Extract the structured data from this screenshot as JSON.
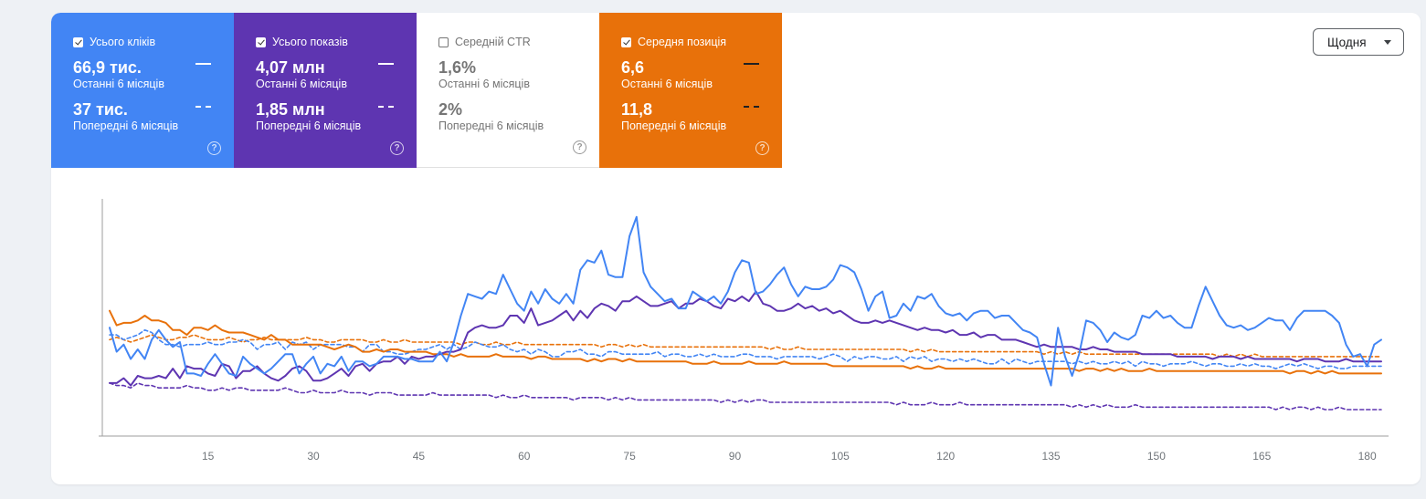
{
  "tiles": [
    {
      "key": "clicks",
      "label": "Усього кліків",
      "checked": true,
      "current_value": "66,9 тис.",
      "current_label": "Останні 6 місяців",
      "previous_value": "37 тис.",
      "previous_label": "Попередні 6 місяців",
      "color": "#4285f4"
    },
    {
      "key": "impressions",
      "label": "Усього показів",
      "checked": true,
      "current_value": "4,07 млн",
      "current_label": "Останні 6 місяців",
      "previous_value": "1,85 млн",
      "previous_label": "Попередні 6 місяців",
      "color": "#5e35b1"
    },
    {
      "key": "ctr",
      "label": "Середній CTR",
      "checked": false,
      "current_value": "1,6%",
      "current_label": "Останні 6 місяців",
      "previous_value": "2%",
      "previous_label": "Попередні 6 місяців",
      "color": "#ffffff"
    },
    {
      "key": "position",
      "label": "Середня позиція",
      "checked": true,
      "current_value": "6,6",
      "current_label": "Останні 6 місяців",
      "previous_value": "11,8",
      "previous_label": "Попередні 6 місяців",
      "color": "#e8710a"
    }
  ],
  "help_icon": "help-circle-icon",
  "granularity": {
    "label": "Щодня",
    "icon": "chevron-down-icon"
  },
  "chart_data": {
    "type": "line",
    "xlabel": "",
    "ylabel": "",
    "xlim": [
      1,
      182
    ],
    "ylim": [
      0,
      100
    ],
    "x_ticks": [
      15,
      30,
      45,
      60,
      75,
      90,
      105,
      120,
      135,
      150,
      165,
      180
    ],
    "y_axis_visible": false,
    "grid": false,
    "series": [
      {
        "metric": "clicks",
        "period": "current",
        "color": "#4285f4",
        "style": "solid",
        "width": 2,
        "y": [
          45,
          35,
          38,
          32,
          36,
          32,
          40,
          44,
          40,
          37,
          39,
          26,
          26,
          25,
          30,
          34,
          30,
          26,
          25,
          33,
          30,
          28,
          26,
          28,
          31,
          34,
          34,
          26,
          30,
          33,
          26,
          30,
          29,
          33,
          27,
          31,
          31,
          29,
          30,
          33,
          33,
          33,
          32,
          32,
          31,
          31,
          31,
          35,
          31,
          39,
          50,
          59,
          58,
          57,
          60,
          59,
          67,
          61,
          55,
          52,
          60,
          55,
          61,
          57,
          55,
          59,
          55,
          69,
          73,
          72,
          77,
          67,
          66,
          66,
          83,
          91,
          68,
          62,
          59,
          56,
          57,
          53,
          53,
          60,
          58,
          56,
          58,
          55,
          60,
          68,
          73,
          72,
          59,
          60,
          63,
          67,
          70,
          63,
          58,
          62,
          61,
          61,
          62,
          65,
          71,
          70,
          68,
          61,
          52,
          58,
          60,
          49,
          50,
          55,
          52,
          58,
          57,
          59,
          54,
          51,
          50,
          51,
          48,
          51,
          52,
          52,
          49,
          50,
          50,
          47,
          44,
          43,
          41,
          30,
          21,
          45,
          33,
          25,
          34,
          48,
          47,
          44,
          39,
          43,
          41,
          40,
          42,
          50,
          49,
          52,
          49,
          50,
          47,
          45,
          45,
          54,
          62,
          56,
          50,
          46,
          45,
          46,
          44,
          45,
          47,
          49,
          48,
          48,
          44,
          49,
          52,
          52,
          52,
          52,
          50,
          47,
          38,
          33,
          34,
          29,
          38,
          40
        ]
      },
      {
        "metric": "clicks",
        "period": "previous",
        "color": "#4285f4",
        "style": "dashed",
        "width": 1.6,
        "y": [
          42,
          42,
          40,
          41,
          42,
          44,
          43,
          40,
          38,
          38,
          37,
          38,
          38,
          38,
          39,
          38,
          38,
          39,
          39,
          40,
          39,
          36,
          38,
          38,
          39,
          36,
          39,
          38,
          39,
          36,
          38,
          38,
          38,
          38,
          37,
          37,
          35,
          38,
          38,
          35,
          35,
          34,
          34,
          35,
          36,
          36,
          37,
          38,
          36,
          38,
          36,
          37,
          39,
          38,
          37,
          37,
          38,
          36,
          35,
          36,
          34,
          36,
          35,
          33,
          33,
          35,
          35,
          36,
          34,
          34,
          33,
          35,
          35,
          34,
          34,
          34,
          34,
          34,
          35,
          33,
          34,
          34,
          33,
          33,
          34,
          33,
          34,
          33,
          33,
          33,
          34,
          34,
          33,
          33,
          33,
          32,
          33,
          33,
          33,
          33,
          33,
          32,
          33,
          34,
          33,
          31,
          33,
          32,
          33,
          33,
          32,
          32,
          33,
          31,
          33,
          32,
          33,
          31,
          32,
          32,
          31,
          32,
          31,
          32,
          31,
          30,
          30,
          32,
          30,
          32,
          31,
          30,
          31,
          31,
          31,
          31,
          31,
          30,
          31,
          30,
          31,
          30,
          30,
          31,
          30,
          31,
          29,
          31,
          30,
          30,
          29,
          30,
          30,
          30,
          31,
          30,
          29,
          30,
          30,
          29,
          29,
          30,
          29,
          30,
          29,
          29,
          28,
          29,
          30,
          29,
          30,
          29,
          28,
          29,
          29,
          28,
          28,
          29,
          29,
          29,
          29,
          29
        ]
      },
      {
        "metric": "impressions",
        "period": "current",
        "color": "#5e35b1",
        "style": "solid",
        "width": 2,
        "y": [
          22,
          22,
          24,
          21,
          25,
          24,
          24,
          25,
          24,
          28,
          24,
          29,
          28,
          28,
          26,
          25,
          30,
          29,
          24,
          27,
          27,
          29,
          26,
          24,
          23,
          25,
          28,
          29,
          27,
          23,
          23,
          24,
          26,
          28,
          25,
          29,
          30,
          27,
          30,
          31,
          31,
          33,
          30,
          33,
          32,
          33,
          33,
          34,
          35,
          35,
          36,
          43,
          45,
          46,
          45,
          45,
          46,
          50,
          50,
          47,
          53,
          46,
          47,
          48,
          50,
          52,
          48,
          52,
          49,
          53,
          55,
          54,
          52,
          56,
          56,
          58,
          56,
          54,
          54,
          55,
          56,
          53,
          55,
          55,
          57,
          56,
          54,
          53,
          57,
          56,
          58,
          56,
          60,
          55,
          54,
          52,
          52,
          53,
          55,
          53,
          54,
          52,
          53,
          51,
          52,
          50,
          48,
          47,
          47,
          48,
          47,
          48,
          47,
          46,
          45,
          44,
          45,
          44,
          44,
          43,
          44,
          42,
          42,
          43,
          41,
          42,
          42,
          40,
          40,
          40,
          39,
          38,
          37,
          38,
          37,
          37,
          37,
          37,
          36,
          36,
          37,
          36,
          36,
          35,
          35,
          35,
          35,
          34,
          34,
          34,
          34,
          34,
          33,
          33,
          33,
          33,
          33,
          32,
          33,
          33,
          33,
          32,
          33,
          32,
          32,
          32,
          32,
          32,
          32,
          31,
          32,
          32,
          32,
          31,
          31,
          31,
          32,
          31,
          31,
          31,
          31,
          31
        ]
      },
      {
        "metric": "impressions",
        "period": "previous",
        "color": "#5e35b1",
        "style": "dashed",
        "width": 1.6,
        "y": [
          22,
          21,
          21,
          20,
          22,
          21,
          21,
          20,
          20,
          20,
          20,
          21,
          20,
          20,
          19,
          19,
          20,
          19,
          20,
          20,
          19,
          19,
          19,
          19,
          19,
          20,
          19,
          18,
          18,
          19,
          18,
          18,
          18,
          19,
          18,
          18,
          18,
          17,
          18,
          18,
          18,
          17,
          17,
          17,
          17,
          17,
          18,
          17,
          17,
          17,
          17,
          17,
          17,
          17,
          17,
          16,
          17,
          16,
          16,
          17,
          16,
          16,
          16,
          16,
          16,
          16,
          15,
          16,
          16,
          16,
          16,
          15,
          16,
          15,
          16,
          15,
          15,
          15,
          15,
          15,
          15,
          15,
          15,
          15,
          15,
          15,
          15,
          14,
          15,
          14,
          15,
          14,
          15,
          15,
          14,
          14,
          14,
          14,
          14,
          14,
          14,
          14,
          14,
          14,
          14,
          14,
          14,
          14,
          14,
          14,
          14,
          14,
          13,
          14,
          13,
          13,
          13,
          14,
          13,
          13,
          13,
          14,
          13,
          13,
          13,
          13,
          13,
          13,
          13,
          13,
          13,
          13,
          13,
          13,
          13,
          13,
          13,
          12,
          13,
          12,
          13,
          12,
          13,
          12,
          12,
          12,
          13,
          12,
          12,
          12,
          12,
          12,
          12,
          12,
          12,
          12,
          12,
          12,
          12,
          12,
          12,
          12,
          12,
          12,
          12,
          12,
          11,
          12,
          11,
          12,
          12,
          11,
          12,
          11,
          11,
          12,
          11,
          11,
          11,
          11,
          11,
          11
        ]
      },
      {
        "metric": "position",
        "period": "current",
        "color": "#e8710a",
        "style": "solid",
        "width": 2,
        "y": [
          52,
          46,
          47,
          47,
          48,
          50,
          48,
          48,
          47,
          44,
          44,
          42,
          45,
          45,
          44,
          46,
          44,
          43,
          43,
          43,
          42,
          41,
          40,
          42,
          40,
          40,
          38,
          38,
          38,
          38,
          38,
          37,
          36,
          37,
          38,
          37,
          35,
          35,
          36,
          35,
          36,
          36,
          35,
          35,
          35,
          35,
          34,
          34,
          34,
          33,
          34,
          33,
          33,
          33,
          33,
          34,
          33,
          33,
          33,
          33,
          32,
          33,
          33,
          32,
          32,
          32,
          32,
          32,
          31,
          32,
          31,
          32,
          32,
          31,
          32,
          31,
          31,
          31,
          31,
          31,
          31,
          31,
          31,
          30,
          30,
          30,
          31,
          30,
          30,
          30,
          30,
          31,
          30,
          30,
          30,
          30,
          31,
          30,
          30,
          30,
          30,
          30,
          30,
          29,
          29,
          29,
          29,
          29,
          29,
          29,
          29,
          29,
          29,
          29,
          28,
          29,
          28,
          28,
          29,
          28,
          28,
          28,
          28,
          28,
          28,
          28,
          28,
          28,
          28,
          28,
          28,
          28,
          28,
          28,
          28,
          28,
          28,
          28,
          27,
          28,
          28,
          27,
          28,
          27,
          28,
          27,
          27,
          27,
          28,
          27,
          27,
          27,
          27,
          27,
          27,
          27,
          27,
          27,
          27,
          27,
          27,
          27,
          27,
          27,
          27,
          27,
          27,
          27,
          26,
          27,
          27,
          26,
          27,
          26,
          27,
          26,
          26,
          26,
          26,
          26,
          26,
          26
        ]
      },
      {
        "metric": "position",
        "period": "previous",
        "color": "#e8710a",
        "style": "dashed",
        "width": 1.6,
        "y": [
          40,
          41,
          40,
          39,
          40,
          41,
          42,
          41,
          40,
          40,
          41,
          41,
          42,
          41,
          40,
          40,
          40,
          41,
          40,
          39,
          40,
          40,
          41,
          40,
          40,
          40,
          40,
          40,
          41,
          40,
          40,
          39,
          39,
          40,
          40,
          40,
          40,
          39,
          39,
          40,
          39,
          39,
          40,
          39,
          39,
          39,
          39,
          39,
          39,
          39,
          38,
          39,
          39,
          38,
          38,
          39,
          38,
          38,
          39,
          38,
          38,
          38,
          38,
          38,
          38,
          38,
          38,
          38,
          38,
          38,
          37,
          38,
          38,
          37,
          38,
          37,
          38,
          37,
          37,
          37,
          37,
          37,
          37,
          37,
          37,
          37,
          37,
          37,
          37,
          37,
          37,
          37,
          37,
          37,
          36,
          37,
          36,
          36,
          37,
          36,
          36,
          36,
          36,
          36,
          36,
          36,
          36,
          36,
          36,
          36,
          36,
          36,
          36,
          36,
          35,
          36,
          35,
          36,
          35,
          35,
          35,
          35,
          35,
          35,
          35,
          35,
          35,
          35,
          35,
          35,
          35,
          35,
          35,
          34,
          35,
          34,
          35,
          34,
          35,
          34,
          34,
          34,
          34,
          34,
          34,
          34,
          34,
          34,
          34,
          34,
          34,
          34,
          34,
          34,
          34,
          34,
          34,
          34,
          33,
          34,
          33,
          34,
          33,
          34,
          33,
          33,
          33,
          33,
          33,
          33,
          33,
          33,
          33,
          33,
          33,
          33,
          33,
          33,
          33,
          33,
          33,
          33
        ]
      }
    ]
  }
}
